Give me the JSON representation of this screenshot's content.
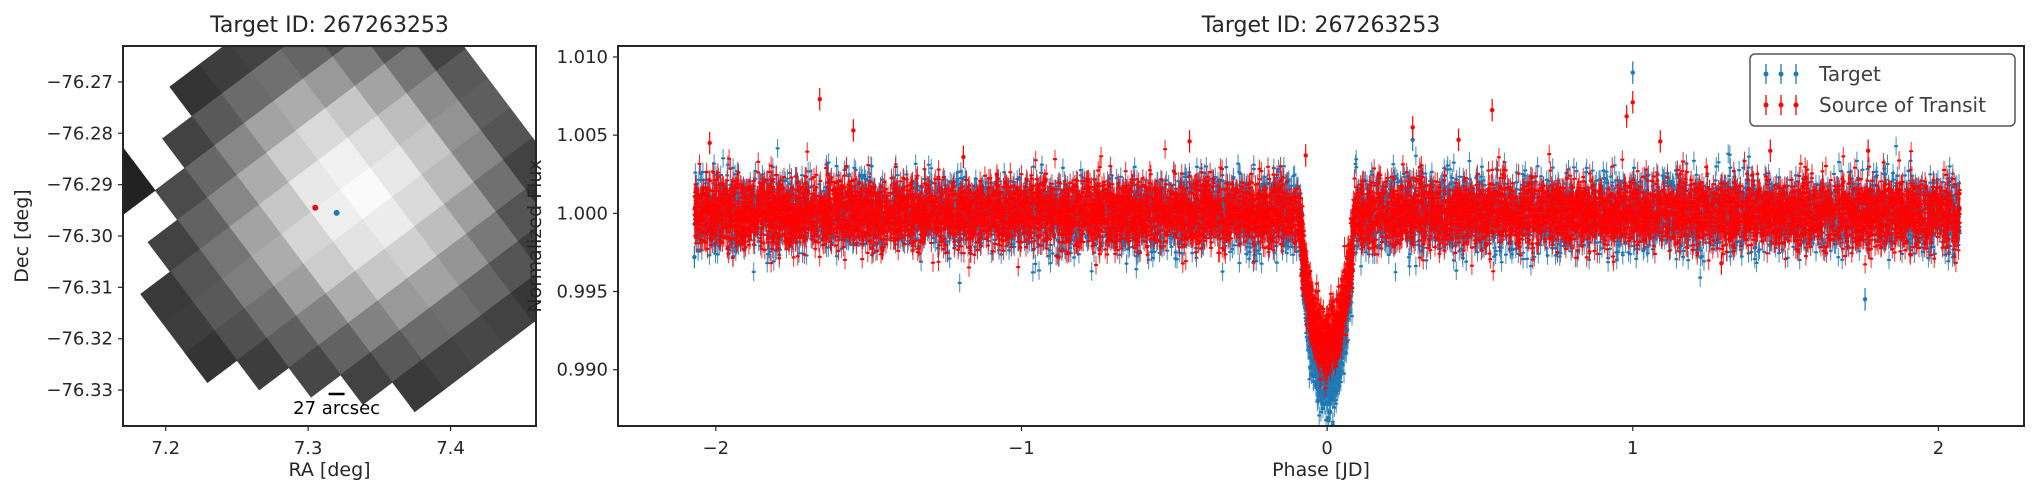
{
  "chart_data": [
    {
      "type": "heatmap",
      "title": "Target ID: 267263253",
      "xlabel": "RA [deg]",
      "ylabel": "Dec [deg]",
      "xlim": [
        7.17,
        7.46
      ],
      "ylim": [
        -76.337,
        -76.263
      ],
      "xticks": [
        7.2,
        7.3,
        7.4
      ],
      "xtick_labels": [
        "7.2",
        "7.3",
        "7.4"
      ],
      "yticks": [
        -76.27,
        -76.28,
        -76.29,
        -76.3,
        -76.31,
        -76.32,
        -76.33
      ],
      "ytick_labels": [
        "−76.27",
        "−76.28",
        "−76.29",
        "−76.30",
        "−76.31",
        "−76.32",
        "−76.33"
      ],
      "pixel_grid": {
        "rows": 11,
        "cols": 11,
        "rotation_deg": 53,
        "center": [
          7.32,
          -76.296
        ],
        "valid_mask": [
          "..XXXXXXXXX",
          ".XXXXXXXXXX",
          "XXXXXXXXXXX",
          "XXXXXXXXXXX",
          "XXXXXXXXXXX",
          "XXXXXXXXXXX",
          "XXXXXXXXXXX",
          ".XXXXXXXXX.",
          "..XXXXXXX..",
          "XX.XXXXX...",
          "XX..XXX...."
        ],
        "values": [
          [
            0.0,
            0.0,
            0.12,
            0.2,
            0.3,
            0.32,
            0.28,
            0.2,
            0.14,
            0.1,
            0.06
          ],
          [
            0.0,
            0.14,
            0.28,
            0.42,
            0.52,
            0.55,
            0.5,
            0.4,
            0.28,
            0.18,
            0.1
          ],
          [
            0.12,
            0.26,
            0.45,
            0.62,
            0.74,
            0.78,
            0.72,
            0.6,
            0.44,
            0.28,
            0.15
          ],
          [
            0.18,
            0.35,
            0.58,
            0.78,
            0.88,
            0.92,
            0.86,
            0.74,
            0.56,
            0.36,
            0.2
          ],
          [
            0.2,
            0.4,
            0.66,
            0.86,
            0.96,
            1.0,
            0.94,
            0.82,
            0.62,
            0.4,
            0.22
          ],
          [
            0.18,
            0.38,
            0.62,
            0.8,
            0.92,
            0.95,
            0.9,
            0.78,
            0.58,
            0.38,
            0.2
          ],
          [
            0.14,
            0.3,
            0.5,
            0.66,
            0.78,
            0.84,
            0.8,
            0.66,
            0.48,
            0.3,
            0.16
          ],
          [
            0.0,
            0.2,
            0.36,
            0.5,
            0.62,
            0.66,
            0.6,
            0.48,
            0.34,
            0.2,
            0.0
          ],
          [
            0.0,
            0.0,
            0.24,
            0.34,
            0.42,
            0.46,
            0.4,
            0.32,
            0.22,
            0.0,
            0.0
          ],
          [
            0.05,
            0.06,
            0.0,
            0.2,
            0.28,
            0.3,
            0.26,
            0.18,
            0.0,
            0.0,
            0.0
          ],
          [
            0.04,
            0.05,
            0.0,
            0.0,
            0.16,
            0.18,
            0.14,
            0.0,
            0.0,
            0.0,
            0.0
          ]
        ]
      },
      "markers": [
        {
          "ra": 7.305,
          "dec": -76.2945,
          "color": "#ff0000"
        },
        {
          "ra": 7.32,
          "dec": -76.2955,
          "color": "#1f77b4"
        }
      ],
      "scalebar": {
        "label": "27 arcsec",
        "ra": 7.32,
        "dec": -76.3335
      }
    },
    {
      "type": "scatter",
      "title": "Target ID: 267263253",
      "xlabel": "Phase [JD]",
      "ylabel": "Normalized Flux",
      "xlim": [
        -2.32,
        2.28
      ],
      "ylim": [
        0.9864,
        1.0107
      ],
      "xticks": [
        -2,
        -1,
        0,
        1,
        2
      ],
      "xtick_labels": [
        "−2",
        "−1",
        "0",
        "1",
        "2"
      ],
      "yticks": [
        0.99,
        0.995,
        1.0,
        1.005,
        1.01
      ],
      "ytick_labels": [
        "0.990",
        "0.995",
        "1.000",
        "1.005",
        "1.010"
      ],
      "legend_position": "top-right",
      "series": [
        {
          "name": "Target",
          "color": "#1f77b4",
          "model": {
            "period_span": [
              -2.07,
              2.07
            ],
            "baseline": 1.0,
            "scatter": 0.00115,
            "err": 0.0006,
            "transit_center": 0.0,
            "transit_half_width": 0.088,
            "transit_depth": 0.0108
          },
          "outliers": [
            [
              1.0,
              1.009
            ],
            [
              0.28,
              1.0047
            ],
            [
              1.76,
              0.9945
            ],
            [
              -2.07,
              0.9972
            ]
          ]
        },
        {
          "name": "Source of Transit",
          "color": "#ff0000",
          "model": {
            "period_span": [
              -2.07,
              2.07
            ],
            "baseline": 1.0,
            "scatter": 0.00105,
            "err": 0.0006,
            "transit_center": 0.0,
            "transit_half_width": 0.088,
            "transit_depth": 0.0082
          },
          "outliers": [
            [
              -1.66,
              1.0073
            ],
            [
              -2.02,
              1.0045
            ],
            [
              -1.55,
              1.0053
            ],
            [
              -0.45,
              1.0046
            ],
            [
              0.43,
              1.0047
            ],
            [
              0.54,
              1.0066
            ],
            [
              0.28,
              1.0055
            ],
            [
              0.98,
              1.0062
            ],
            [
              1.0,
              1.0071
            ],
            [
              1.09,
              1.0046
            ],
            [
              1.77,
              1.004
            ],
            [
              1.45,
              1.004
            ],
            [
              1.29,
              0.9968
            ],
            [
              -1.19,
              1.0036
            ],
            [
              -0.07,
              1.0037
            ]
          ]
        }
      ]
    }
  ]
}
